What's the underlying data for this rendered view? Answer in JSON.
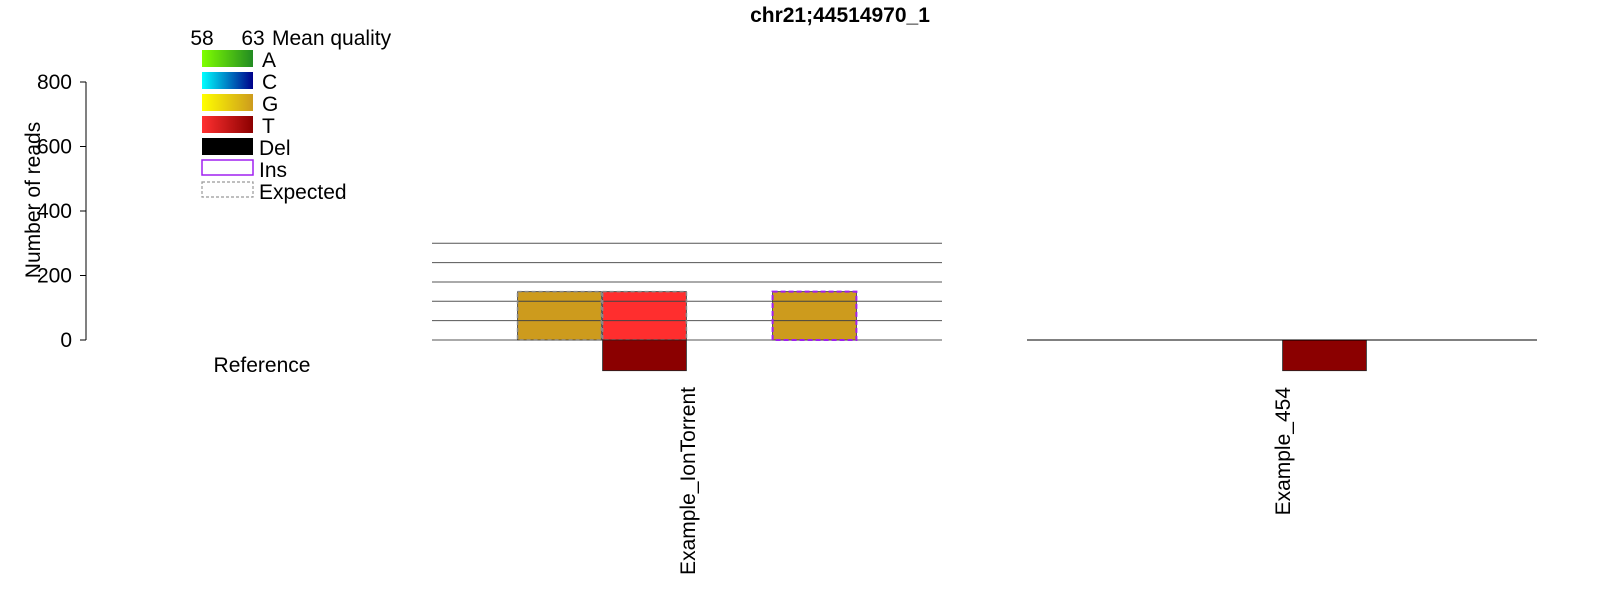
{
  "chart_data": {
    "type": "bar",
    "title": "chr21;44514970_1",
    "ylabel": "Number of reads",
    "ylim": [
      0,
      800
    ],
    "yticks": [
      0,
      200,
      400,
      600,
      800
    ],
    "reference_label": "Reference",
    "legend": {
      "quality_scale": {
        "min_label": "58",
        "max_label": "63",
        "title": "Mean quality"
      },
      "entries": [
        {
          "key": "A",
          "label": "A",
          "colors": [
            "#7FFF00",
            "#228B22"
          ]
        },
        {
          "key": "C",
          "label": "C",
          "colors": [
            "#00FFFF",
            "#00008B"
          ]
        },
        {
          "key": "G",
          "label": "G",
          "colors": [
            "#FFFF00",
            "#CD9B1D"
          ]
        },
        {
          "key": "T",
          "label": "T",
          "colors": [
            "#FF3030",
            "#8B0000"
          ]
        },
        {
          "key": "Del",
          "label": "Del",
          "colors": [
            "#000000",
            "#000000"
          ]
        },
        {
          "key": "Ins",
          "label": "Ins",
          "colors": [
            "#A020F0"
          ]
        },
        {
          "key": "Expected",
          "label": "Expected",
          "colors": [
            "#999999"
          ]
        }
      ]
    },
    "samples": [
      {
        "name": "Example_IonTorrent",
        "gridlines": [
          0,
          60,
          120,
          180,
          240,
          300
        ],
        "bars": [
          {
            "slot": 1,
            "base": "G",
            "forward": 150,
            "reverse": 0,
            "fill": "#CD9B1D",
            "expected": true
          },
          {
            "slot": 2,
            "base": "T",
            "forward": 150,
            "reverse": 95,
            "fill": "#FF2E2E",
            "reverse_fill": "#8B0000",
            "expected": true
          },
          {
            "slot": 4,
            "base": "G",
            "forward": 150,
            "reverse": 0,
            "fill": "#CD9B1D",
            "insertion": true
          }
        ]
      },
      {
        "name": "Example_454",
        "gridlines": [],
        "bars": [
          {
            "slot": 3,
            "base": "T",
            "forward": 0,
            "reverse": 95,
            "reverse_fill": "#8B0000"
          }
        ]
      }
    ]
  }
}
